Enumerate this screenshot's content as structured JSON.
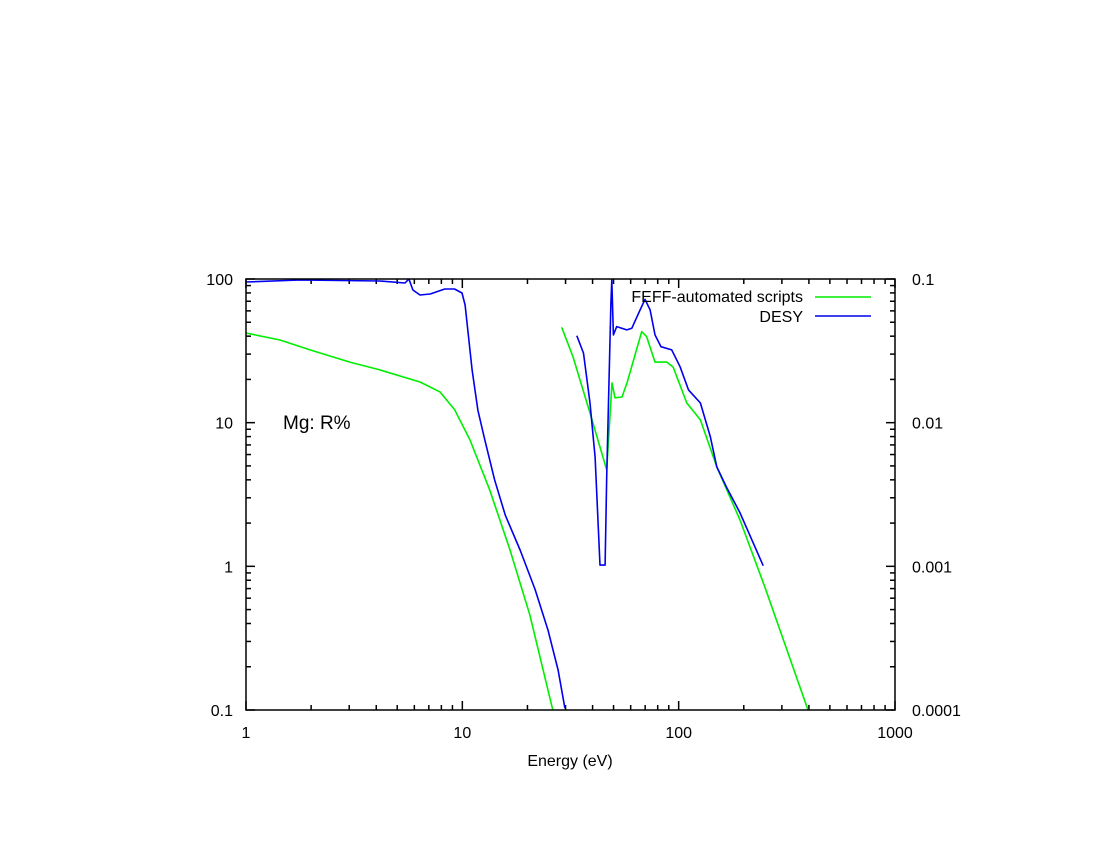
{
  "chart_data": {
    "type": "line",
    "title": "",
    "annotation": "Mg: R%",
    "xlabel": "Energy (eV)",
    "ylabel": "",
    "xscale": "log",
    "yscale": "log",
    "xlim": [
      1,
      1000
    ],
    "ylim": [
      0.1,
      100
    ],
    "y2lim": [
      0.0001,
      0.1
    ],
    "x_ticks": [
      "1",
      "10",
      "100",
      "1000"
    ],
    "y_ticks": [
      "0.1",
      "1",
      "10",
      "100"
    ],
    "y2_ticks": [
      "0.0001",
      "0.001",
      "0.01",
      "0.1"
    ],
    "grid": false,
    "legend_position": "top-right",
    "series": [
      {
        "name": "FEFF-automated scripts",
        "color": "#00ee00",
        "segments": [
          {
            "axis": "y",
            "points": [
              [
                1,
                42.1
              ],
              [
                1.436,
                37.6
              ],
              [
                1.977,
                32.1
              ],
              [
                3.02,
                26.4
              ],
              [
                4.16,
                23.3
              ],
              [
                6.37,
                19.2
              ],
              [
                7.87,
                16.4
              ],
              [
                9.22,
                12.3
              ],
              [
                10.85,
                7.58
              ],
              [
                13.4,
                3.39
              ],
              [
                16.6,
                1.3
              ],
              [
                20.5,
                0.46
              ],
              [
                25.5,
                0.118
              ],
              [
                26.2,
                0.1
              ]
            ]
          },
          {
            "axis": "y2",
            "points": [
              [
                28.8,
                0.0461
              ],
              [
                32.5,
                0.0286
              ],
              [
                38.9,
                0.01168
              ],
              [
                46.5,
                0.00469
              ],
              [
                49.2,
                0.0189
              ],
              [
                50.8,
                0.0149
              ],
              [
                54.7,
                0.0151
              ],
              [
                57.7,
                0.0189
              ],
              [
                67.5,
                0.043
              ],
              [
                71.1,
                0.0397
              ],
              [
                77.7,
                0.0264
              ],
              [
                88.1,
                0.0264
              ],
              [
                94.2,
                0.0244
              ],
              [
                109,
                0.0137
              ],
              [
                126,
                0.01045
              ],
              [
                150,
                0.00492
              ],
              [
                192,
                0.0021
              ],
              [
                251,
                0.00071
              ],
              [
                396,
                0.0001
              ]
            ]
          }
        ]
      },
      {
        "name": "DESY",
        "color": "#0000ee",
        "segments": [
          {
            "axis": "y",
            "points": [
              [
                1,
                95.3
              ],
              [
                1.777,
                98.4
              ],
              [
                4.164,
                96.8
              ],
              [
                5.43,
                93.8
              ],
              [
                5.66,
                100
              ],
              [
                5.91,
                83.8
              ],
              [
                6.37,
                77.4
              ],
              [
                7.1,
                78.6
              ],
              [
                8.3,
                85.2
              ],
              [
                9.2,
                85.2
              ],
              [
                9.96,
                79.9
              ],
              [
                10.3,
                65.9
              ],
              [
                10.6,
                44.2
              ],
              [
                11.1,
                23.3
              ],
              [
                11.8,
                12.2
              ],
              [
                12.7,
                7.6
              ],
              [
                14.1,
                4.0
              ],
              [
                15.8,
                2.27
              ],
              [
                18.5,
                1.3
              ],
              [
                21.7,
                0.69
              ],
              [
                24.9,
                0.36
              ],
              [
                27.7,
                0.19
              ],
              [
                29.8,
                0.103
              ]
            ]
          },
          {
            "axis": "y2",
            "points": [
              [
                33.8,
                0.0403
              ],
              [
                36.3,
                0.0305
              ],
              [
                38.9,
                0.0137
              ],
              [
                41.1,
                0.00577
              ],
              [
                43.3,
                0.00102
              ],
              [
                45.7,
                0.00102
              ],
              [
                46.5,
                0.00421
              ],
              [
                48.6,
                0.0681
              ],
              [
                49.1,
                0.0984
              ],
              [
                49.9,
                0.0408
              ],
              [
                51.7,
                0.0466
              ],
              [
                57.6,
                0.0442
              ],
              [
                60.7,
                0.0454
              ],
              [
                66.3,
                0.0609
              ],
              [
                69.9,
                0.0722
              ],
              [
                73.8,
                0.0609
              ],
              [
                77.7,
                0.0408
              ],
              [
                82.9,
                0.0338
              ],
              [
                92.9,
                0.0321
              ],
              [
                101.5,
                0.0245
              ],
              [
                111,
                0.0169
              ],
              [
                126,
                0.0137
              ],
              [
                140,
                0.008
              ],
              [
                150,
                0.00492
              ],
              [
                167,
                0.00352
              ],
              [
                192,
                0.00236
              ],
              [
                246,
                0.00101
              ]
            ]
          }
        ]
      }
    ]
  }
}
